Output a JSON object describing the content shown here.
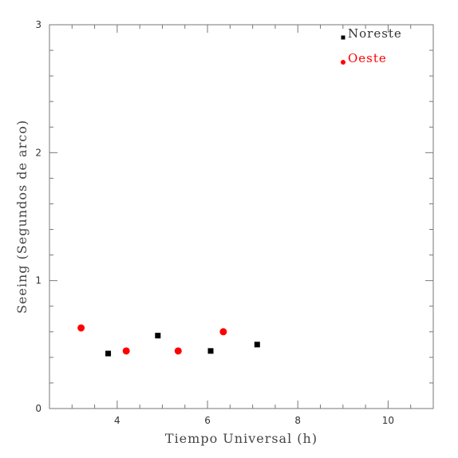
{
  "chart_data": {
    "type": "scatter",
    "title": "",
    "xlabel": "Tiempo Universal (h)",
    "ylabel": "Seeing (Segundos de arco)",
    "xlim": [
      2.5,
      11
    ],
    "ylim": [
      0,
      3
    ],
    "x_ticks": [
      4,
      6,
      8,
      10
    ],
    "y_ticks": [
      0,
      1,
      2,
      3
    ],
    "grid": false,
    "legend_position": "top-right",
    "series": [
      {
        "name": "Noreste",
        "marker": "square",
        "color": "#000000",
        "points": [
          {
            "x": 3.8,
            "y": 0.43
          },
          {
            "x": 4.9,
            "y": 0.57
          },
          {
            "x": 6.07,
            "y": 0.45
          },
          {
            "x": 7.1,
            "y": 0.5
          }
        ]
      },
      {
        "name": "Oeste",
        "marker": "circle",
        "color": "#ff0000",
        "points": [
          {
            "x": 3.2,
            "y": 0.63
          },
          {
            "x": 4.2,
            "y": 0.45
          },
          {
            "x": 5.35,
            "y": 0.45
          },
          {
            "x": 6.35,
            "y": 0.6
          }
        ]
      }
    ]
  }
}
